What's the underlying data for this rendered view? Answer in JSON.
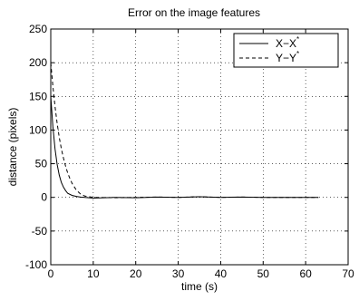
{
  "chart_data": {
    "type": "line",
    "title": "Error on the image features",
    "xlabel": "time (s)",
    "ylabel": "distance (pixels)",
    "xlim": [
      0,
      70
    ],
    "ylim": [
      -100,
      250
    ],
    "xticks": [
      0,
      10,
      20,
      30,
      40,
      50,
      60,
      70
    ],
    "yticks": [
      -100,
      -50,
      0,
      50,
      100,
      150,
      200,
      250
    ],
    "grid": "dotted",
    "legend_position": "top-right",
    "series": [
      {
        "name": "X−X*",
        "style": "solid",
        "x": [
          0,
          0.5,
          1,
          1.5,
          2,
          2.5,
          3,
          3.5,
          4,
          5,
          6,
          7,
          8,
          10,
          15,
          20,
          25,
          30,
          35,
          40,
          45,
          50,
          55,
          60,
          63
        ],
        "y": [
          150,
          105,
          72,
          49,
          33,
          22,
          15,
          10,
          6,
          3,
          1.5,
          0.5,
          0,
          -1,
          0,
          -0.5,
          0.5,
          0,
          1,
          0,
          0.5,
          0,
          0,
          0,
          0
        ]
      },
      {
        "name": "Y−Y*",
        "style": "dashed",
        "x": [
          0,
          0.5,
          1,
          1.5,
          2,
          2.5,
          3,
          3.5,
          4,
          4.5,
          5,
          6,
          7,
          8,
          10,
          15,
          20,
          25,
          30,
          35,
          40,
          45,
          50,
          55,
          60,
          63
        ],
        "y": [
          200,
          165,
          135,
          110,
          89,
          72,
          58,
          46,
          36,
          28,
          21,
          11,
          5,
          2,
          0,
          -0.5,
          0,
          0.5,
          0,
          1,
          0,
          0.5,
          0,
          0,
          0,
          0
        ]
      }
    ]
  }
}
